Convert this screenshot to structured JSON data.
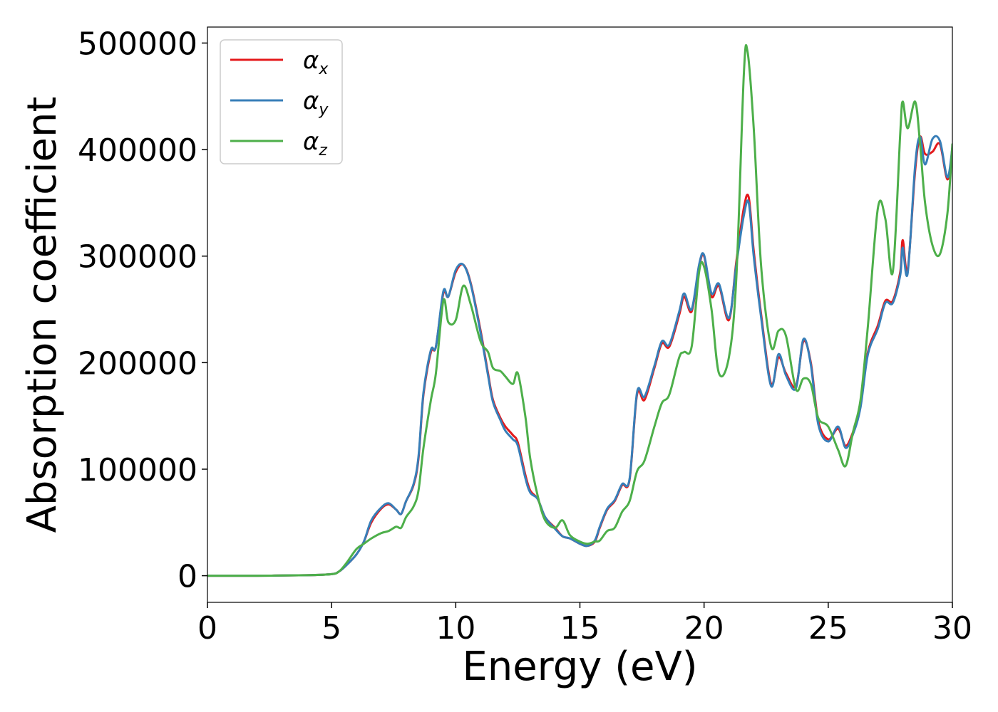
{
  "chart_data": {
    "type": "line",
    "xlabel": "Energy (eV)",
    "ylabel": "Absorption coefficient",
    "xlim": [
      0,
      30
    ],
    "ylim": [
      -25000,
      515000
    ],
    "xticks": [
      0,
      5,
      10,
      15,
      20,
      25,
      30
    ],
    "xtick_labels": [
      "0",
      "5",
      "10",
      "15",
      "20",
      "25",
      "30"
    ],
    "yticks": [
      0,
      100000,
      200000,
      300000,
      400000,
      500000
    ],
    "ytick_labels": [
      "0",
      "100000",
      "200000",
      "300000",
      "400000",
      "500000"
    ],
    "grid": false,
    "legend_position": "upper-left",
    "series": [
      {
        "name": "α_x",
        "legend_base": "α",
        "legend_sub": "x",
        "color": "#e41a1c",
        "points": [
          [
            0,
            0
          ],
          [
            2,
            0
          ],
          [
            4,
            500
          ],
          [
            5,
            1500
          ],
          [
            5.3,
            4000
          ],
          [
            5.6,
            10000
          ],
          [
            6,
            20000
          ],
          [
            6.3,
            32000
          ],
          [
            6.6,
            50000
          ],
          [
            7,
            63000
          ],
          [
            7.3,
            67000
          ],
          [
            7.6,
            62000
          ],
          [
            7.8,
            58000
          ],
          [
            8,
            70000
          ],
          [
            8.3,
            85000
          ],
          [
            8.5,
            110000
          ],
          [
            8.7,
            170000
          ],
          [
            9,
            210000
          ],
          [
            9.2,
            215000
          ],
          [
            9.5,
            265000
          ],
          [
            9.7,
            262000
          ],
          [
            10,
            285000
          ],
          [
            10.3,
            292000
          ],
          [
            10.6,
            275000
          ],
          [
            11,
            230000
          ],
          [
            11.3,
            190000
          ],
          [
            11.5,
            165000
          ],
          [
            11.8,
            148000
          ],
          [
            12,
            140000
          ],
          [
            12.3,
            132000
          ],
          [
            12.5,
            125000
          ],
          [
            12.8,
            95000
          ],
          [
            13,
            80000
          ],
          [
            13.3,
            72000
          ],
          [
            13.6,
            55000
          ],
          [
            14,
            45000
          ],
          [
            14.3,
            37000
          ],
          [
            14.6,
            35000
          ],
          [
            15,
            30000
          ],
          [
            15.3,
            28000
          ],
          [
            15.6,
            32000
          ],
          [
            15.8,
            45000
          ],
          [
            16.1,
            62000
          ],
          [
            16.4,
            70000
          ],
          [
            16.7,
            85000
          ],
          [
            17,
            90000
          ],
          [
            17.3,
            170000
          ],
          [
            17.6,
            165000
          ],
          [
            18,
            195000
          ],
          [
            18.3,
            218000
          ],
          [
            18.6,
            215000
          ],
          [
            19,
            245000
          ],
          [
            19.2,
            262000
          ],
          [
            19.5,
            248000
          ],
          [
            19.8,
            290000
          ],
          [
            20,
            300000
          ],
          [
            20.3,
            262000
          ],
          [
            20.6,
            272000
          ],
          [
            21,
            240000
          ],
          [
            21.3,
            295000
          ],
          [
            21.6,
            345000
          ],
          [
            21.8,
            355000
          ],
          [
            22,
            305000
          ],
          [
            22.3,
            245000
          ],
          [
            22.7,
            180000
          ],
          [
            23,
            205000
          ],
          [
            23.3,
            190000
          ],
          [
            23.7,
            178000
          ],
          [
            24,
            220000
          ],
          [
            24.3,
            200000
          ],
          [
            24.6,
            145000
          ],
          [
            25,
            128000
          ],
          [
            25.4,
            138000
          ],
          [
            25.7,
            122000
          ],
          [
            26,
            135000
          ],
          [
            26.3,
            160000
          ],
          [
            26.6,
            210000
          ],
          [
            27,
            235000
          ],
          [
            27.3,
            258000
          ],
          [
            27.6,
            258000
          ],
          [
            27.9,
            285000
          ],
          [
            28,
            315000
          ],
          [
            28.2,
            287000
          ],
          [
            28.5,
            380000
          ],
          [
            28.7,
            412000
          ],
          [
            28.9,
            396000
          ],
          [
            29.2,
            398000
          ],
          [
            29.5,
            405000
          ],
          [
            29.8,
            372000
          ],
          [
            30,
            400000
          ]
        ]
      },
      {
        "name": "α_y",
        "legend_base": "α",
        "legend_sub": "y",
        "color": "#377eb8",
        "points": [
          [
            0,
            0
          ],
          [
            2,
            0
          ],
          [
            4,
            500
          ],
          [
            5,
            1500
          ],
          [
            5.3,
            4000
          ],
          [
            5.6,
            10000
          ],
          [
            6,
            20000
          ],
          [
            6.3,
            32000
          ],
          [
            6.6,
            52000
          ],
          [
            7,
            64000
          ],
          [
            7.3,
            68000
          ],
          [
            7.6,
            62000
          ],
          [
            7.8,
            58000
          ],
          [
            8,
            70000
          ],
          [
            8.3,
            86000
          ],
          [
            8.5,
            112000
          ],
          [
            8.7,
            172000
          ],
          [
            9,
            212000
          ],
          [
            9.2,
            215000
          ],
          [
            9.5,
            267000
          ],
          [
            9.7,
            262000
          ],
          [
            10,
            287000
          ],
          [
            10.3,
            292000
          ],
          [
            10.6,
            274000
          ],
          [
            11,
            228000
          ],
          [
            11.3,
            188000
          ],
          [
            11.5,
            163000
          ],
          [
            11.8,
            146000
          ],
          [
            12,
            136000
          ],
          [
            12.3,
            128000
          ],
          [
            12.5,
            122000
          ],
          [
            12.8,
            92000
          ],
          [
            13,
            78000
          ],
          [
            13.3,
            72000
          ],
          [
            13.6,
            55000
          ],
          [
            14,
            44000
          ],
          [
            14.3,
            37000
          ],
          [
            14.6,
            35000
          ],
          [
            15,
            30000
          ],
          [
            15.3,
            28000
          ],
          [
            15.6,
            33000
          ],
          [
            15.8,
            46000
          ],
          [
            16.1,
            63000
          ],
          [
            16.4,
            71000
          ],
          [
            16.7,
            86000
          ],
          [
            17,
            91000
          ],
          [
            17.3,
            172000
          ],
          [
            17.6,
            168000
          ],
          [
            18,
            197000
          ],
          [
            18.3,
            220000
          ],
          [
            18.6,
            217000
          ],
          [
            19,
            248000
          ],
          [
            19.2,
            265000
          ],
          [
            19.5,
            250000
          ],
          [
            19.8,
            292000
          ],
          [
            20,
            301000
          ],
          [
            20.3,
            265000
          ],
          [
            20.6,
            274000
          ],
          [
            21,
            242000
          ],
          [
            21.3,
            292000
          ],
          [
            21.6,
            338000
          ],
          [
            21.8,
            350000
          ],
          [
            22,
            300000
          ],
          [
            22.3,
            242000
          ],
          [
            22.7,
            178000
          ],
          [
            23,
            208000
          ],
          [
            23.3,
            188000
          ],
          [
            23.7,
            176000
          ],
          [
            24,
            222000
          ],
          [
            24.3,
            198000
          ],
          [
            24.6,
            142000
          ],
          [
            25,
            126000
          ],
          [
            25.4,
            140000
          ],
          [
            25.7,
            120000
          ],
          [
            26,
            133000
          ],
          [
            26.3,
            158000
          ],
          [
            26.6,
            208000
          ],
          [
            27,
            232000
          ],
          [
            27.3,
            256000
          ],
          [
            27.6,
            256000
          ],
          [
            27.9,
            282000
          ],
          [
            28,
            308000
          ],
          [
            28.2,
            284000
          ],
          [
            28.5,
            385000
          ],
          [
            28.7,
            412000
          ],
          [
            28.9,
            386000
          ],
          [
            29.2,
            410000
          ],
          [
            29.5,
            408000
          ],
          [
            29.8,
            374000
          ],
          [
            30,
            402000
          ]
        ]
      },
      {
        "name": "α_z",
        "legend_base": "α",
        "legend_sub": "z",
        "color": "#4daf4a",
        "points": [
          [
            0,
            0
          ],
          [
            2,
            0
          ],
          [
            4,
            500
          ],
          [
            5,
            1500
          ],
          [
            5.3,
            4000
          ],
          [
            5.6,
            12000
          ],
          [
            6,
            25000
          ],
          [
            6.3,
            30000
          ],
          [
            6.6,
            35000
          ],
          [
            7,
            40000
          ],
          [
            7.3,
            42000
          ],
          [
            7.6,
            46000
          ],
          [
            7.8,
            45000
          ],
          [
            8,
            55000
          ],
          [
            8.3,
            65000
          ],
          [
            8.5,
            80000
          ],
          [
            8.7,
            120000
          ],
          [
            9,
            165000
          ],
          [
            9.2,
            190000
          ],
          [
            9.5,
            258000
          ],
          [
            9.7,
            238000
          ],
          [
            10,
            240000
          ],
          [
            10.3,
            272000
          ],
          [
            10.6,
            255000
          ],
          [
            11,
            220000
          ],
          [
            11.3,
            210000
          ],
          [
            11.5,
            195000
          ],
          [
            11.8,
            192000
          ],
          [
            12,
            187000
          ],
          [
            12.3,
            180000
          ],
          [
            12.5,
            190000
          ],
          [
            12.8,
            150000
          ],
          [
            13,
            110000
          ],
          [
            13.3,
            75000
          ],
          [
            13.6,
            52000
          ],
          [
            14,
            45000
          ],
          [
            14.3,
            52000
          ],
          [
            14.6,
            38000
          ],
          [
            15,
            32000
          ],
          [
            15.3,
            30000
          ],
          [
            15.6,
            32000
          ],
          [
            15.8,
            33000
          ],
          [
            16.1,
            42000
          ],
          [
            16.4,
            45000
          ],
          [
            16.7,
            60000
          ],
          [
            17,
            70000
          ],
          [
            17.3,
            98000
          ],
          [
            17.6,
            108000
          ],
          [
            18,
            140000
          ],
          [
            18.3,
            162000
          ],
          [
            18.6,
            170000
          ],
          [
            19,
            205000
          ],
          [
            19.2,
            210000
          ],
          [
            19.5,
            215000
          ],
          [
            19.8,
            285000
          ],
          [
            20,
            290000
          ],
          [
            20.3,
            250000
          ],
          [
            20.6,
            190000
          ],
          [
            21,
            205000
          ],
          [
            21.3,
            280000
          ],
          [
            21.6,
            470000
          ],
          [
            21.75,
            492000
          ],
          [
            22,
            420000
          ],
          [
            22.3,
            290000
          ],
          [
            22.7,
            215000
          ],
          [
            23,
            230000
          ],
          [
            23.3,
            225000
          ],
          [
            23.7,
            175000
          ],
          [
            24,
            185000
          ],
          [
            24.3,
            180000
          ],
          [
            24.6,
            148000
          ],
          [
            25,
            140000
          ],
          [
            25.4,
            118000
          ],
          [
            25.7,
            103000
          ],
          [
            26,
            135000
          ],
          [
            26.3,
            165000
          ],
          [
            26.6,
            235000
          ],
          [
            27,
            345000
          ],
          [
            27.3,
            335000
          ],
          [
            27.6,
            285000
          ],
          [
            27.9,
            415000
          ],
          [
            28,
            445000
          ],
          [
            28.2,
            420000
          ],
          [
            28.5,
            445000
          ],
          [
            28.7,
            405000
          ],
          [
            28.9,
            350000
          ],
          [
            29.2,
            310000
          ],
          [
            29.5,
            302000
          ],
          [
            29.8,
            340000
          ],
          [
            30,
            405000
          ]
        ]
      }
    ]
  }
}
